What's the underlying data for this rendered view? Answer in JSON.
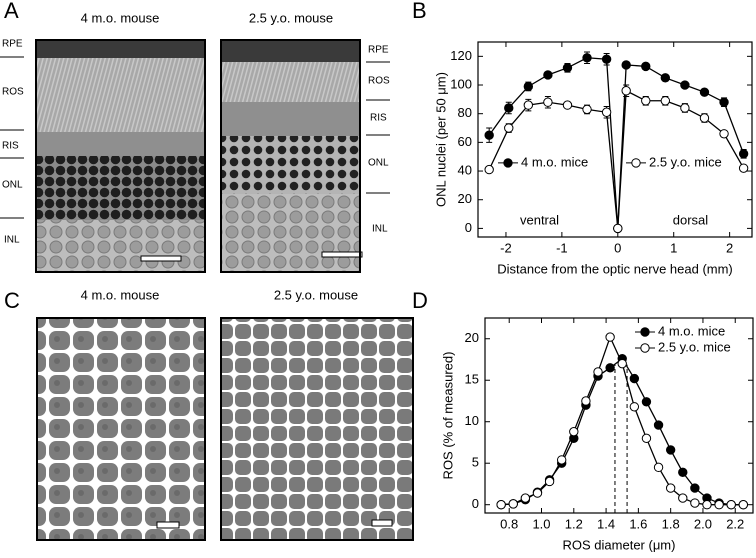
{
  "panel_labels": [
    "A",
    "B",
    "C",
    "D"
  ],
  "panel_a": {
    "titles": [
      "4 m.o. mouse",
      "2.5 y.o. mouse"
    ],
    "layers_left": [
      "RPE",
      "ROS",
      "RIS",
      "ONL",
      "INL"
    ],
    "layers_right": [
      "RPE",
      "ROS",
      "RIS",
      "ONL",
      "INL"
    ]
  },
  "panel_c": {
    "titles": [
      "4 m.o. mouse",
      "2.5 y.o. mouse"
    ]
  },
  "chart_data": [
    {
      "type": "line",
      "xlabel": "Distance from the optic nerve head (mm)",
      "ylabel": "ONL nuclei (per 50 μm)",
      "x": [
        -2.3,
        -1.95,
        -1.6,
        -1.25,
        -0.9,
        -0.55,
        -0.2,
        0,
        0.15,
        0.5,
        0.85,
        1.2,
        1.55,
        1.9,
        2.25
      ],
      "series": [
        {
          "name": "4 m.o. mice",
          "color": "#000000",
          "fill": "#000000",
          "values": [
            65,
            84,
            99,
            107,
            112,
            119,
            118,
            0,
            114,
            113,
            105,
            100,
            95,
            88,
            52
          ],
          "errors": [
            5,
            4,
            3,
            2,
            3,
            4,
            4,
            0,
            2,
            2,
            2,
            2,
            2,
            3,
            3
          ]
        },
        {
          "name": "2.5 y.o. mice",
          "color": "#000000",
          "fill": "#ffffff",
          "values": [
            41,
            70,
            86,
            88,
            86,
            83,
            81,
            0,
            96,
            89,
            89,
            84,
            77,
            66,
            42
          ],
          "errors": [
            2,
            3,
            4,
            4,
            2,
            3,
            4,
            0,
            4,
            3,
            3,
            3,
            3,
            2,
            2
          ]
        }
      ],
      "annotations": [
        {
          "text": "ventral",
          "x": -1.4,
          "y": 5
        },
        {
          "text": "dorsal",
          "x": 1.3,
          "y": 5
        }
      ],
      "xlim": [
        -2.5,
        2.4
      ],
      "xticks": [
        -2,
        -1,
        0,
        1,
        2
      ],
      "ylim": [
        -6,
        130
      ],
      "yticks": [
        0,
        20,
        40,
        60,
        80,
        100,
        120
      ],
      "legend": "center"
    },
    {
      "type": "line",
      "xlabel": "ROS diameter (μm)",
      "ylabel": "ROS (% of measured)",
      "x": [
        0.75,
        0.825,
        0.9,
        0.975,
        1.05,
        1.125,
        1.2,
        1.275,
        1.35,
        1.425,
        1.5,
        1.575,
        1.65,
        1.725,
        1.8,
        1.875,
        1.95,
        2.025,
        2.1,
        2.175,
        2.25
      ],
      "series": [
        {
          "name": "4 m.o. mice",
          "color": "#000000",
          "fill": "#000000",
          "values": [
            0,
            0.1,
            0.6,
            1.5,
            3,
            5,
            8,
            12,
            15.5,
            16.5,
            17.6,
            15.2,
            12.4,
            9.6,
            6.6,
            3.9,
            2,
            0.8,
            0.2,
            0,
            0
          ]
        },
        {
          "name": "2.5 y.o. mice",
          "color": "#000000",
          "fill": "#ffffff",
          "values": [
            0,
            0.1,
            0.8,
            1.4,
            2.8,
            5.4,
            8.8,
            12.5,
            16,
            20.2,
            17,
            11.8,
            8,
            4.5,
            2,
            0.8,
            0.2,
            0,
            0,
            0,
            0
          ]
        }
      ],
      "vlines": [
        1.455,
        1.53
      ],
      "xlim": [
        0.65,
        2.31
      ],
      "xticks": [
        {
          "value": 0.8,
          "label": "0.8"
        },
        {
          "value": 1,
          "label": "1.0"
        },
        {
          "value": 1.2,
          "label": "1.2"
        },
        {
          "value": 1.4,
          "label": "1.4"
        },
        {
          "value": 1.6,
          "label": "1.6"
        },
        {
          "value": 1.8,
          "label": "1.8"
        },
        {
          "value": 2,
          "label": "2.0"
        },
        {
          "value": 2.2,
          "label": "2.2"
        }
      ],
      "ylim": [
        -1,
        22.5
      ],
      "yticks": [
        0,
        5,
        10,
        15,
        20
      ],
      "legend": "upper right"
    }
  ]
}
